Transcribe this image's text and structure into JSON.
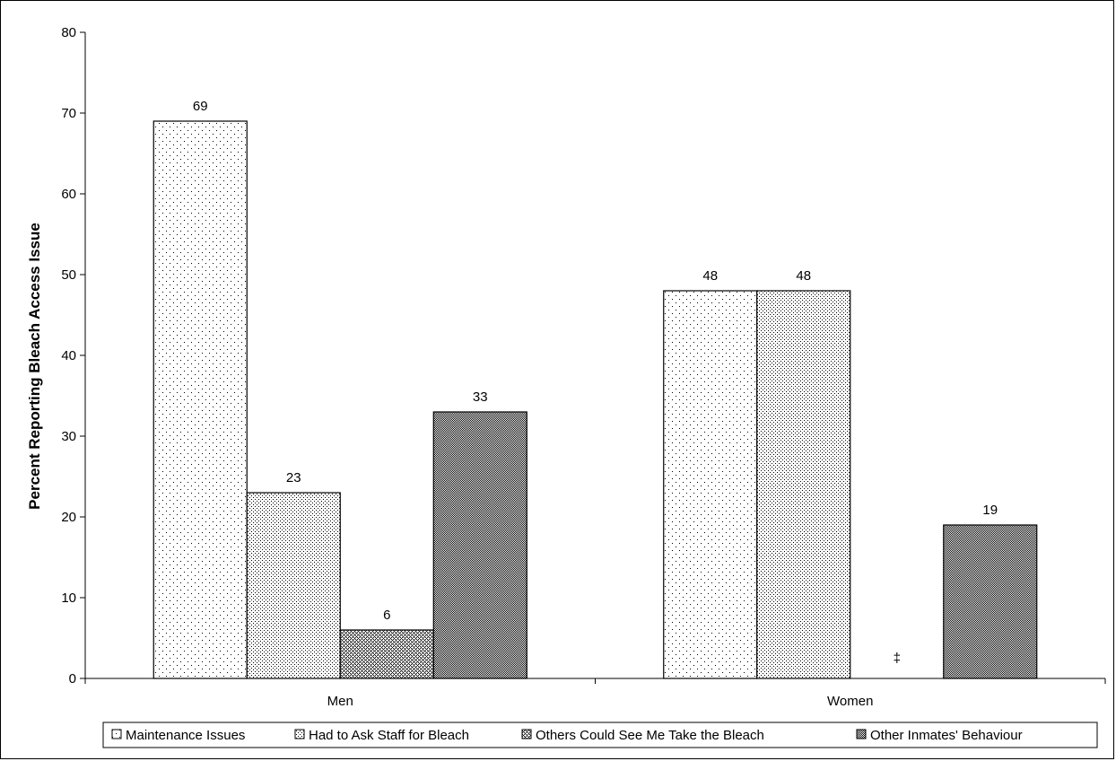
{
  "chart_data": {
    "type": "bar",
    "title": "",
    "xlabel": "",
    "ylabel": "Percent Reporting Bleach Access Issue",
    "ylim": [
      0,
      80
    ],
    "yticks": [
      0,
      10,
      20,
      30,
      40,
      50,
      60,
      70,
      80
    ],
    "grid": false,
    "legend_position": "bottom",
    "categories": [
      "Men",
      "Women"
    ],
    "series": [
      {
        "name": "Maintenance Issues",
        "values": [
          69,
          48
        ],
        "labels": [
          "69",
          "48"
        ],
        "pattern": "sparse-dots"
      },
      {
        "name": "Had to Ask Staff for Bleach",
        "values": [
          23,
          48
        ],
        "labels": [
          "23",
          "48"
        ],
        "pattern": "dense-dots"
      },
      {
        "name": "Others Could See Me Take the Bleach",
        "values": [
          6,
          null
        ],
        "labels": [
          "6",
          "‡"
        ],
        "pattern": "crosshatch"
      },
      {
        "name": "Other Inmates' Behaviour",
        "values": [
          33,
          19
        ],
        "labels": [
          "33",
          "19"
        ],
        "pattern": "dark-checker"
      }
    ]
  }
}
